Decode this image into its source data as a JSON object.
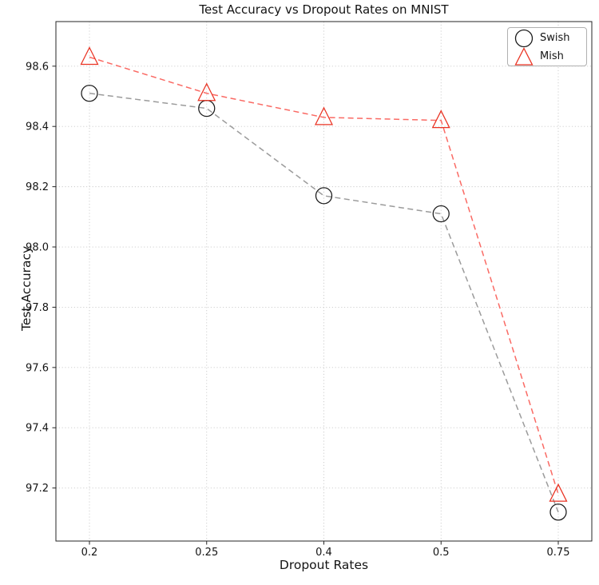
{
  "chart_data": {
    "type": "line",
    "title": "Test Accuracy vs Dropout Rates on MNIST",
    "xlabel": "Dropout Rates",
    "ylabel": "Test Accuracy",
    "categories": [
      "0.2",
      "0.25",
      "0.4",
      "0.5",
      "0.75"
    ],
    "series": [
      {
        "name": "Swish",
        "values": [
          98.51,
          98.46,
          98.17,
          98.11,
          97.12
        ],
        "marker": "circle",
        "marker_color": "#1a1a1a",
        "line_color": "#9b9b9b"
      },
      {
        "name": "Mish",
        "values": [
          98.63,
          98.51,
          98.43,
          98.42,
          97.18
        ],
        "marker": "triangle",
        "marker_color": "#ea3323",
        "line_color": "#fa6a64"
      }
    ],
    "y_ticks": [
      97.2,
      97.4,
      97.6,
      97.8,
      98.0,
      98.2,
      98.4,
      98.6
    ],
    "ylim": [
      97.024,
      98.748
    ],
    "line_style": "dashed",
    "grid": true,
    "grid_style": "dotted",
    "grid_color": "#c9c9c9",
    "spine_color": "#262626",
    "tick_label_color": "#141414",
    "legend_position": "upper right"
  }
}
